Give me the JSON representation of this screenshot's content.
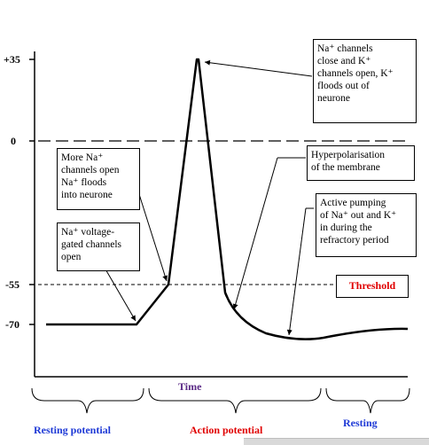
{
  "colors": {
    "phase_blue": "#1f3ad6",
    "phase_red": "#e00000",
    "axis_title": "#5b2a86",
    "threshold_text": "#e00000"
  },
  "axis": {
    "tick_labels": [
      "+35",
      "0",
      "-55",
      "-70"
    ],
    "x_title": "Time"
  },
  "annotations": {
    "na_close": [
      "Na⁺ channels",
      "close and K⁺",
      "channels open, K⁺",
      "floods out of",
      "neurone"
    ],
    "more_na": [
      "More Na⁺",
      "channels open",
      "Na⁺ floods",
      "into neurone"
    ],
    "na_voltage": [
      "Na⁺ voltage-",
      "gated channels",
      "open"
    ],
    "hyperpolarisation": [
      "Hyperpolarisation",
      "of the membrane"
    ],
    "active_pumping": [
      "Active pumping",
      "of Na⁺ out and K⁺",
      "in during the",
      "refractory period"
    ]
  },
  "threshold_label": "Threshold",
  "phases": {
    "resting1": "Resting potential",
    "action": "Action potential",
    "resting2": "Resting"
  },
  "chart_data": {
    "type": "line",
    "xlabel": "Time",
    "ylabel": "",
    "y_ticks": [
      35,
      0,
      -55,
      -70
    ],
    "threshold": -55,
    "resting_potential": -70,
    "peak": 35
  }
}
